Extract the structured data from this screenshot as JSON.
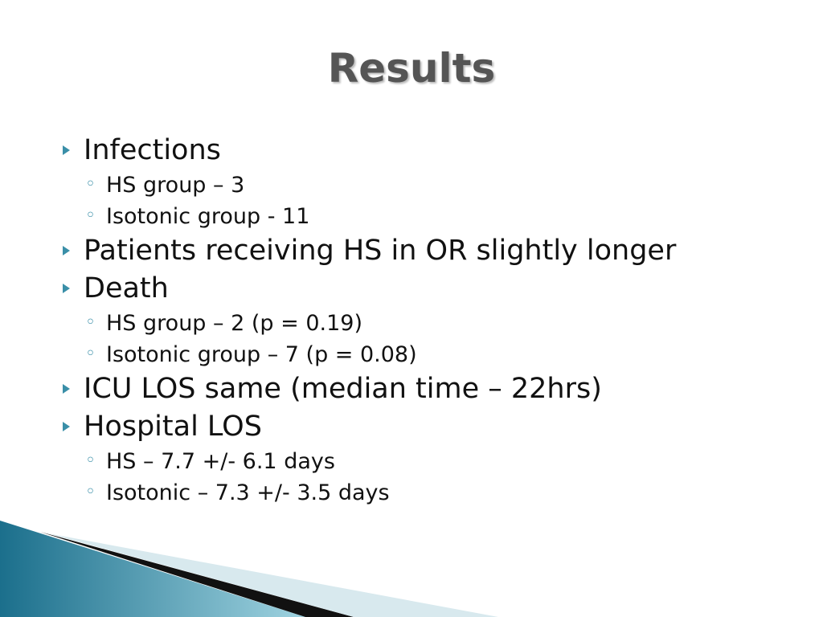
{
  "title": "Results",
  "items": [
    {
      "text": "Infections",
      "sub": [
        "HS group – 3",
        "Isotonic group - 11"
      ]
    },
    {
      "text": "Patients receiving HS in OR slightly longer",
      "sub": []
    },
    {
      "text": "Death",
      "sub": [
        "HS group – 2 (p = 0.19)",
        "Isotonic group – 7 (p = 0.08)"
      ]
    },
    {
      "text": "ICU LOS same (median time – 22hrs)",
      "sub": []
    },
    {
      "text": "Hospital LOS",
      "sub": [
        "HS – 7.7 +/- 6.1 days",
        "Isotonic – 7.3 +/- 3.5 days"
      ]
    }
  ]
}
